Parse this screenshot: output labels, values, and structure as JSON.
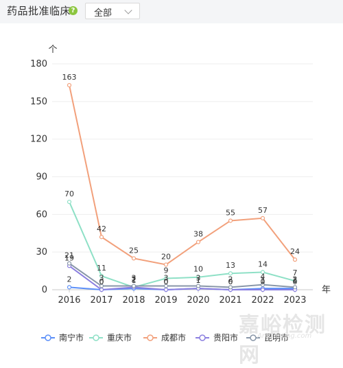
{
  "header": {
    "title": "药品批准临床",
    "help_icon": "question-mark-icon",
    "dropdown_value": "全部"
  },
  "watermark": {
    "text": "嘉峪检测网",
    "sub": "AnyTesting.com"
  },
  "chart_data": {
    "type": "line",
    "ylabel": "个",
    "xlabel": "年",
    "categories": [
      "2016",
      "2017",
      "2018",
      "2019",
      "2020",
      "2021",
      "2022",
      "2023"
    ],
    "ylim": [
      0,
      180
    ],
    "yticks": [
      0,
      30,
      60,
      90,
      120,
      150,
      180
    ],
    "grid": true,
    "legend_position": "bottom",
    "series": [
      {
        "name": "南宁市",
        "color": "#5b8ff9",
        "values": [
          2,
          0,
          1,
          0,
          1,
          0,
          1,
          1
        ]
      },
      {
        "name": "重庆市",
        "color": "#8ee0c6",
        "values": [
          70,
          11,
          2,
          9,
          10,
          13,
          14,
          7
        ]
      },
      {
        "name": "成都市",
        "color": "#f2a07b",
        "values": [
          163,
          42,
          25,
          20,
          38,
          55,
          57,
          24
        ]
      },
      {
        "name": "贵阳市",
        "color": "#8b7fe0",
        "values": [
          19,
          0,
          2,
          0,
          1,
          0,
          0,
          0
        ]
      },
      {
        "name": "昆明市",
        "color": "#8896a8",
        "values": [
          21,
          3,
          3,
          3,
          3,
          2,
          4,
          2
        ]
      }
    ]
  }
}
